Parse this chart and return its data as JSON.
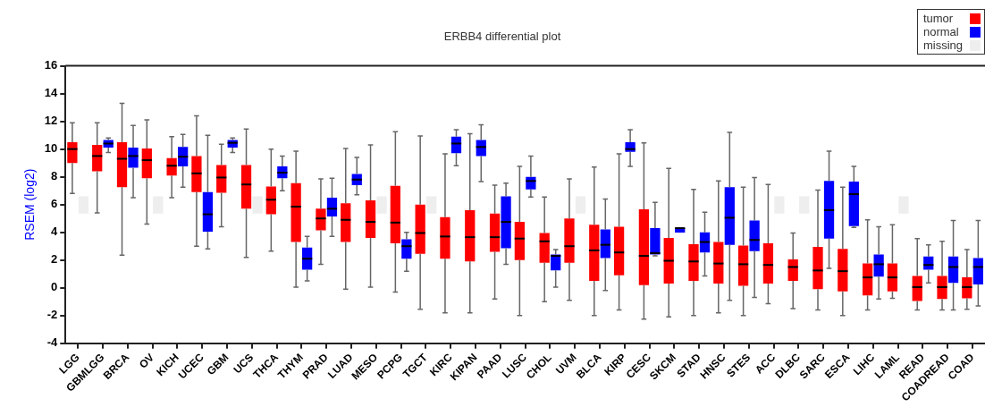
{
  "chart_data": {
    "type": "box",
    "title": "ERBB4 differential plot",
    "ylabel": "RSEM (log2)",
    "categories": [
      "LGG",
      "GBMLGG",
      "BRCA",
      "OV",
      "KICH",
      "UCEC",
      "GBM",
      "UCS",
      "THCA",
      "THYM",
      "PRAD",
      "LUAD",
      "MESO",
      "PCPG",
      "TGCT",
      "KIRC",
      "KIPAN",
      "PAAD",
      "LUSC",
      "CHOL",
      "UVM",
      "BLCA",
      "KIRP",
      "CESC",
      "SKCM",
      "STAD",
      "HNSC",
      "STES",
      "ACC",
      "DLBC",
      "SARC",
      "ESCA",
      "LIHC",
      "LAML",
      "READ",
      "COADREAD",
      "COAD"
    ],
    "ylim": [
      -4,
      16
    ],
    "yticks": [
      -4,
      -2,
      0,
      2,
      4,
      6,
      8,
      10,
      12,
      14,
      16
    ],
    "legend": "top right",
    "series": [
      {
        "name": "tumor",
        "color": "#ff0000",
        "boxes": [
          {
            "low": 6.8,
            "q1": 9.0,
            "median": 10.0,
            "q3": 10.5,
            "high": 11.9
          },
          {
            "low": 5.4,
            "q1": 8.4,
            "median": 9.5,
            "q3": 10.3,
            "high": 11.9
          },
          {
            "low": 2.35,
            "q1": 7.25,
            "median": 9.3,
            "q3": 10.5,
            "high": 13.3
          },
          {
            "low": 4.6,
            "q1": 7.9,
            "median": 9.2,
            "q3": 10.05,
            "high": 12.1
          },
          {
            "low": 6.5,
            "q1": 8.1,
            "median": 8.8,
            "q3": 9.35,
            "high": 10.9
          },
          {
            "low": 3.0,
            "q1": 6.9,
            "median": 8.25,
            "q3": 9.5,
            "high": 12.4
          },
          {
            "low": 4.4,
            "q1": 6.85,
            "median": 7.95,
            "q3": 8.85,
            "high": 10.35
          },
          {
            "low": 2.2,
            "q1": 5.7,
            "median": 7.45,
            "q3": 8.85,
            "high": 11.45
          },
          {
            "low": 2.65,
            "q1": 5.3,
            "median": 6.35,
            "q3": 7.3,
            "high": 10.0
          },
          {
            "low": 0.05,
            "q1": 3.3,
            "median": 5.85,
            "q3": 7.55,
            "high": 9.85
          },
          {
            "low": 1.7,
            "q1": 4.15,
            "median": 5.0,
            "q3": 5.7,
            "high": 7.85
          },
          {
            "low": -0.1,
            "q1": 3.3,
            "median": 4.9,
            "q3": 6.1,
            "high": 10.05
          },
          {
            "low": 0.05,
            "q1": 3.6,
            "median": 4.75,
            "q3": 6.3,
            "high": 10.3
          },
          {
            "low": -0.3,
            "q1": 3.2,
            "median": 4.7,
            "q3": 7.35,
            "high": 11.25
          },
          {
            "low": -1.55,
            "q1": 2.45,
            "median": 3.95,
            "q3": 6.0,
            "high": 10.95
          },
          {
            "low": -1.8,
            "q1": 2.1,
            "median": 3.7,
            "q3": 5.1,
            "high": 9.65
          },
          {
            "low": -1.8,
            "q1": 1.9,
            "median": 3.65,
            "q3": 5.6,
            "high": 11.1
          },
          {
            "low": -0.8,
            "q1": 2.6,
            "median": 3.65,
            "q3": 5.35,
            "high": 7.4
          },
          {
            "low": -2.0,
            "q1": 2.0,
            "median": 3.55,
            "q3": 4.75,
            "high": 8.75
          },
          {
            "low": -1.0,
            "q1": 1.8,
            "median": 3.35,
            "q3": 3.95,
            "high": 6.55
          },
          {
            "low": -0.9,
            "q1": 1.8,
            "median": 3.0,
            "q3": 5.0,
            "high": 7.85
          },
          {
            "low": -2.0,
            "q1": 0.5,
            "median": 2.7,
            "q3": 4.55,
            "high": 8.7
          },
          {
            "low": -1.6,
            "q1": 0.9,
            "median": 2.55,
            "q3": 4.4,
            "high": 9.65
          },
          {
            "low": -2.25,
            "q1": 0.2,
            "median": 2.3,
            "q3": 5.65,
            "high": 10.45
          },
          {
            "low": -2.1,
            "q1": 0.3,
            "median": 1.95,
            "q3": 3.6,
            "high": 8.6
          },
          {
            "low": -2.0,
            "q1": 0.5,
            "median": 1.9,
            "q3": 3.15,
            "high": 7.1
          },
          {
            "low": -1.8,
            "q1": 0.3,
            "median": 1.75,
            "q3": 3.3,
            "high": 7.7
          },
          {
            "low": -2.0,
            "q1": 0.15,
            "median": 1.7,
            "q3": 3.05,
            "high": 7.25
          },
          {
            "low": -1.15,
            "q1": 0.3,
            "median": 1.65,
            "q3": 3.2,
            "high": 7.45
          },
          {
            "low": -1.5,
            "q1": 0.5,
            "median": 1.5,
            "q3": 2.05,
            "high": 3.95
          },
          {
            "low": -1.6,
            "q1": -0.1,
            "median": 1.25,
            "q3": 2.95,
            "high": 7.05
          },
          {
            "low": -2.0,
            "q1": -0.25,
            "median": 1.2,
            "q3": 2.8,
            "high": 7.25
          },
          {
            "low": -1.6,
            "q1": -0.55,
            "median": 0.75,
            "q3": 1.75,
            "high": 4.9
          },
          {
            "low": -0.75,
            "q1": -0.25,
            "median": 0.75,
            "q3": 1.75,
            "high": 4.55
          },
          {
            "low": -1.6,
            "q1": -0.95,
            "median": 0.05,
            "q3": 0.85,
            "high": 3.55
          },
          {
            "low": -1.6,
            "q1": -0.8,
            "median": 0.05,
            "q3": 0.85,
            "high": 3.35
          },
          {
            "low": -1.55,
            "q1": -0.75,
            "median": 0.05,
            "q3": 0.75,
            "high": 2.75
          }
        ]
      },
      {
        "name": "normal",
        "color": "#0000ff",
        "boxes": [
          null,
          {
            "low": 9.75,
            "q1": 10.1,
            "median": 10.4,
            "q3": 10.65,
            "high": 10.8
          },
          {
            "low": 6.5,
            "q1": 8.65,
            "median": 9.5,
            "q3": 10.1,
            "high": 11.7
          },
          null,
          {
            "low": 7.25,
            "q1": 8.75,
            "median": 9.45,
            "q3": 10.15,
            "high": 11.05
          },
          {
            "low": 2.8,
            "q1": 4.05,
            "median": 5.3,
            "q3": 6.9,
            "high": 11.0
          },
          {
            "low": 9.75,
            "q1": 10.1,
            "median": 10.45,
            "q3": 10.65,
            "high": 10.8
          },
          null,
          {
            "low": 7.0,
            "q1": 7.9,
            "median": 8.3,
            "q3": 8.75,
            "high": 9.5
          },
          {
            "low": 0.5,
            "q1": 1.3,
            "median": 2.1,
            "q3": 2.9,
            "high": 3.7
          },
          {
            "low": 3.7,
            "q1": 5.15,
            "median": 5.7,
            "q3": 6.5,
            "high": 7.9
          },
          {
            "low": 6.7,
            "q1": 7.4,
            "median": 7.8,
            "q3": 8.2,
            "high": 9.4
          },
          null,
          {
            "low": 1.2,
            "q1": 2.1,
            "median": 3.0,
            "q3": 3.5,
            "high": 4.0
          },
          null,
          {
            "low": 8.8,
            "q1": 9.7,
            "median": 10.4,
            "q3": 10.9,
            "high": 11.4
          },
          {
            "low": 7.65,
            "q1": 9.5,
            "median": 10.15,
            "q3": 10.65,
            "high": 11.75
          },
          {
            "low": 1.7,
            "q1": 2.85,
            "median": 4.75,
            "q3": 6.6,
            "high": 7.55
          },
          {
            "low": 6.55,
            "q1": 7.1,
            "median": 7.7,
            "q3": 8.0,
            "high": 9.5
          },
          {
            "low": 0.05,
            "q1": 1.25,
            "median": 2.3,
            "q3": 2.4,
            "high": 2.75
          },
          null,
          {
            "low": -0.2,
            "q1": 2.15,
            "median": 3.1,
            "q3": 4.2,
            "high": 6.4
          },
          {
            "low": 8.75,
            "q1": 9.8,
            "median": 10.0,
            "q3": 10.5,
            "high": 11.4
          },
          {
            "low": 2.3,
            "q1": 2.4,
            "median": 2.5,
            "q3": 4.3,
            "high": 6.15
          },
          {
            "low": 4.3,
            "q1": 4.3,
            "median": 4.3,
            "q3": 4.3,
            "high": 4.3
          },
          {
            "low": 0.85,
            "q1": 2.55,
            "median": 3.3,
            "q3": 4.0,
            "high": 5.45
          },
          {
            "low": -0.9,
            "q1": 3.1,
            "median": 5.05,
            "q3": 7.25,
            "high": 11.2
          },
          {
            "low": -0.7,
            "q1": 2.65,
            "median": 3.45,
            "q3": 4.85,
            "high": 7.95
          },
          null,
          null,
          {
            "low": 1.4,
            "q1": 3.55,
            "median": 5.6,
            "q3": 7.7,
            "high": 9.85
          },
          {
            "low": 4.35,
            "q1": 4.45,
            "median": 6.75,
            "q3": 7.65,
            "high": 8.75
          },
          {
            "low": -0.8,
            "q1": 0.8,
            "median": 1.7,
            "q3": 2.4,
            "high": 4.4
          },
          null,
          {
            "low": 0.35,
            "q1": 1.3,
            "median": 1.65,
            "q3": 2.25,
            "high": 3.1
          },
          {
            "low": -1.6,
            "q1": 0.35,
            "median": 1.5,
            "q3": 2.25,
            "high": 4.85
          },
          {
            "low": -1.3,
            "q1": 0.25,
            "median": 1.5,
            "q3": 2.15,
            "high": 4.85
          }
        ]
      },
      {
        "name": "missing",
        "color": "#eeeeee",
        "type": "bar",
        "base": [
          5.35,
          null,
          null,
          5.35,
          null,
          null,
          null,
          5.35,
          null,
          null,
          null,
          null,
          5.35,
          null,
          5.35,
          null,
          null,
          null,
          null,
          null,
          5.35,
          null,
          null,
          null,
          null,
          null,
          null,
          null,
          5.35,
          5.35,
          null,
          null,
          null,
          5.35,
          null,
          null,
          null
        ],
        "values": [
          1.25,
          null,
          null,
          1.25,
          null,
          null,
          null,
          1.25,
          null,
          null,
          null,
          null,
          1.25,
          null,
          1.25,
          null,
          null,
          null,
          null,
          null,
          1.25,
          null,
          null,
          null,
          null,
          null,
          null,
          null,
          1.25,
          1.25,
          null,
          null,
          null,
          1.25,
          null,
          null,
          null
        ]
      }
    ]
  }
}
